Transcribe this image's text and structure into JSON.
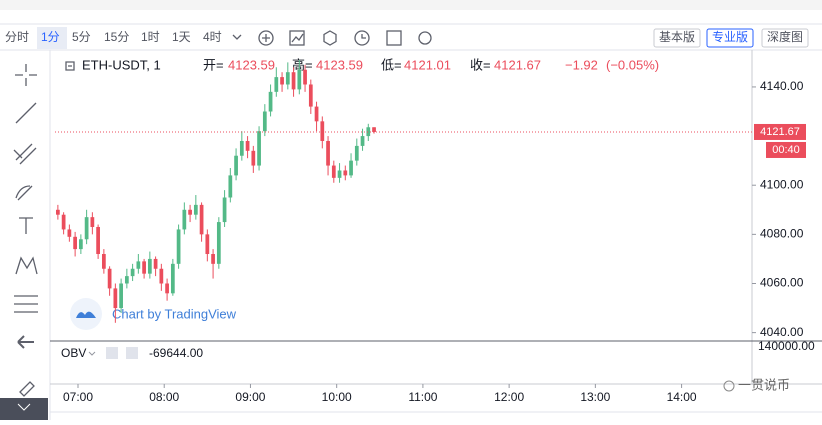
{
  "toolbar": {
    "intervals": [
      "分时",
      "1分",
      "5分",
      "15分",
      "1时",
      "1天",
      "4时"
    ],
    "active_interval": 1
  },
  "views": {
    "items": [
      "基本版",
      "专业版",
      "深度图"
    ],
    "active": 1
  },
  "footer_credit": "一贯说币",
  "chart_data": {
    "type": "candlestick",
    "symbol": "ETH-USDT, 1",
    "header": {
      "open_label": "开=",
      "open": 4123.59,
      "high_label": "高=",
      "high": 4123.59,
      "low_label": "低=",
      "low": 4121.01,
      "close_label": "收=",
      "close": 4121.67,
      "change": {
        "value": -1.92,
        "label": "−1.92"
      },
      "change_pct": {
        "value": -0.05,
        "label": "(−0.05%)"
      }
    },
    "up_color": "#53b987",
    "down_color": "#eb4d5c",
    "x": [
      406,
      410,
      414,
      418,
      422,
      426,
      430,
      434,
      438,
      442,
      446,
      450,
      454,
      458,
      462,
      466,
      470,
      474,
      478,
      482,
      486,
      490,
      494,
      498,
      502,
      506,
      510,
      514,
      518,
      522,
      526,
      530,
      534,
      538,
      542,
      546,
      550,
      554,
      558,
      562,
      566,
      570,
      574,
      578,
      582,
      586,
      590,
      594,
      598,
      602,
      606,
      610,
      614,
      618,
      622,
      626
    ],
    "ohlc": [
      [
        4090,
        4092,
        4086,
        4088
      ],
      [
        4088,
        4089,
        4080,
        4082
      ],
      [
        4082,
        4084,
        4077,
        4079
      ],
      [
        4079,
        4081,
        4071,
        4074
      ],
      [
        4074,
        4080,
        4072,
        4078
      ],
      [
        4078,
        4090,
        4076,
        4087
      ],
      [
        4087,
        4089,
        4080,
        4083
      ],
      [
        4083,
        4084,
        4070,
        4072
      ],
      [
        4072,
        4074,
        4064,
        4066
      ],
      [
        4066,
        4067,
        4055,
        4058
      ],
      [
        4058,
        4060,
        4044,
        4050
      ],
      [
        4050,
        4062,
        4048,
        4060
      ],
      [
        4060,
        4066,
        4058,
        4063
      ],
      [
        4063,
        4068,
        4061,
        4066
      ],
      [
        4066,
        4072,
        4064,
        4069
      ],
      [
        4069,
        4070,
        4062,
        4064
      ],
      [
        4064,
        4073,
        4062,
        4070
      ],
      [
        4070,
        4071,
        4063,
        4066
      ],
      [
        4066,
        4068,
        4057,
        4060
      ],
      [
        4060,
        4062,
        4053,
        4056
      ],
      [
        4056,
        4070,
        4055,
        4068
      ],
      [
        4068,
        4084,
        4066,
        4082
      ],
      [
        4082,
        4093,
        4080,
        4090
      ],
      [
        4090,
        4092,
        4085,
        4088
      ],
      [
        4088,
        4096,
        4086,
        4092
      ],
      [
        4092,
        4093,
        4077,
        4080
      ],
      [
        4080,
        4082,
        4069,
        4072
      ],
      [
        4072,
        4074,
        4062,
        4068
      ],
      [
        4068,
        4087,
        4066,
        4085
      ],
      [
        4085,
        4098,
        4083,
        4095
      ],
      [
        4095,
        4107,
        4093,
        4104
      ],
      [
        4104,
        4115,
        4102,
        4112
      ],
      [
        4112,
        4122,
        4110,
        4118
      ],
      [
        4118,
        4120,
        4111,
        4114
      ],
      [
        4114,
        4116,
        4105,
        4108
      ],
      [
        4108,
        4124,
        4106,
        4122
      ],
      [
        4122,
        4133,
        4120,
        4130
      ],
      [
        4130,
        4141,
        4128,
        4138
      ],
      [
        4138,
        4148,
        4136,
        4144
      ],
      [
        4144,
        4146,
        4138,
        4141
      ],
      [
        4141,
        4150,
        4139,
        4146
      ],
      [
        4146,
        4148,
        4136,
        4139
      ],
      [
        4139,
        4151,
        4137,
        4147
      ],
      [
        4147,
        4149,
        4138,
        4141
      ],
      [
        4141,
        4143,
        4129,
        4132
      ],
      [
        4132,
        4134,
        4122,
        4126
      ],
      [
        4126,
        4128,
        4115,
        4118
      ],
      [
        4118,
        4120,
        4104,
        4108
      ],
      [
        4108,
        4110,
        4101,
        4103
      ],
      [
        4103,
        4109,
        4101,
        4106
      ],
      [
        4106,
        4108,
        4102,
        4104
      ],
      [
        4104,
        4113,
        4103,
        4110
      ],
      [
        4110,
        4119,
        4108,
        4116
      ],
      [
        4116,
        4123,
        4114,
        4120
      ],
      [
        4120,
        4125,
        4118,
        4123.59
      ],
      [
        4123.59,
        4123.59,
        4121.01,
        4121.67
      ]
    ],
    "xlim": [
      404,
      889
    ],
    "xticks": [
      {
        "value": 420,
        "label": "07:00"
      },
      {
        "value": 480,
        "label": "08:00"
      },
      {
        "value": 540,
        "label": "09:00"
      },
      {
        "value": 600,
        "label": "10:00"
      },
      {
        "value": 660,
        "label": "11:00"
      },
      {
        "value": 720,
        "label": "12:00"
      },
      {
        "value": 780,
        "label": "13:00"
      },
      {
        "value": 840,
        "label": "14:00"
      }
    ],
    "ylim": [
      4037,
      4153
    ],
    "yticks": [
      {
        "value": 4040,
        "label": "4040.00"
      },
      {
        "value": 4060,
        "label": "4060.00"
      },
      {
        "value": 4080,
        "label": "4080.00"
      },
      {
        "value": 4100,
        "label": "4100.00"
      },
      {
        "value": 4140,
        "label": "4140.00"
      }
    ],
    "last_price": 4121.67,
    "countdown": "00:40",
    "watermark": "Chart by TradingView",
    "indicator": {
      "name": "OBV",
      "value": {
        "value": -69644,
        "label": "-69644.00"
      },
      "axis_label": {
        "value": 140000,
        "label": "140000.00"
      }
    }
  }
}
